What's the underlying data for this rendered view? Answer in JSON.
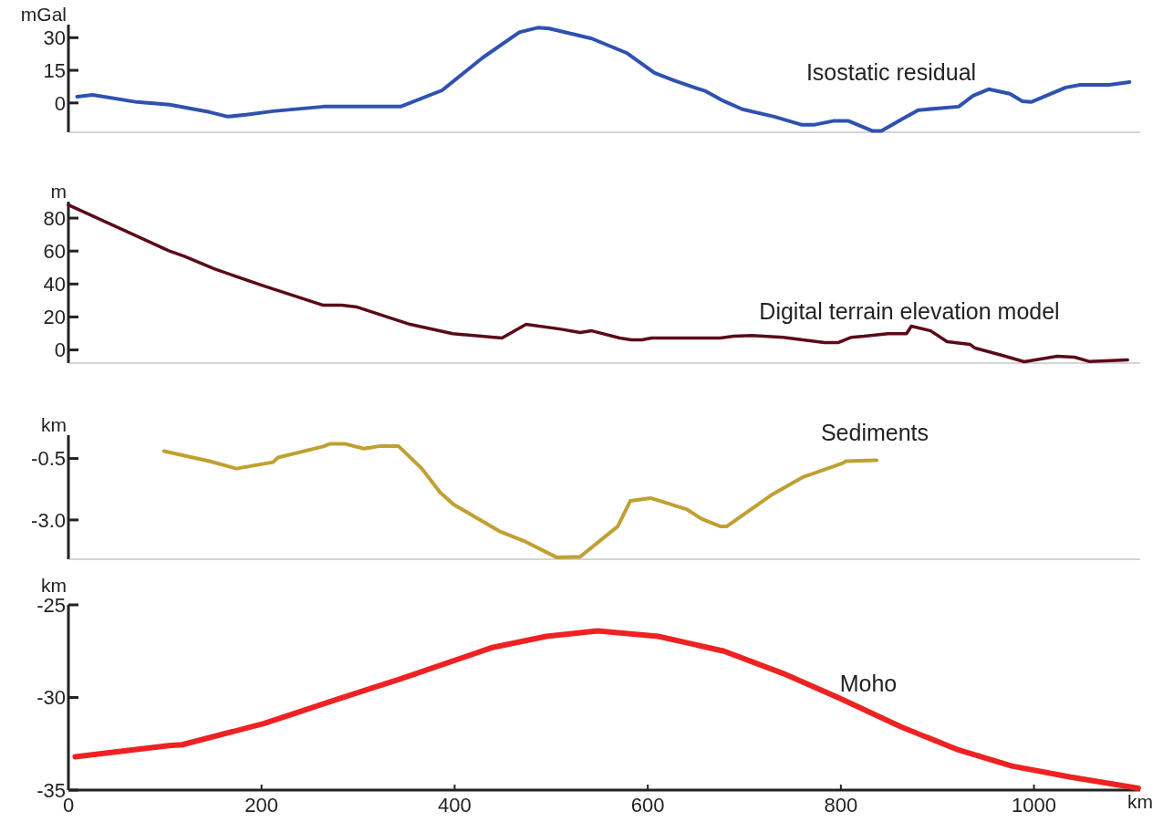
{
  "chart_data": [
    {
      "type": "line",
      "ylabel": "mGal",
      "xlim": [
        0,
        1110
      ],
      "ylim": [
        -13.5,
        36
      ],
      "yticks": [
        0,
        15,
        30
      ],
      "tick_labels": "y",
      "line_style": "solid",
      "x": [
        9,
        25,
        71,
        105,
        146,
        165,
        184,
        212,
        264,
        307,
        344,
        387,
        429,
        467,
        486,
        498,
        542,
        578,
        607,
        627,
        651,
        660,
        679,
        698,
        731,
        759,
        773,
        792,
        808,
        833,
        842,
        863,
        880,
        922,
        937,
        953,
        975,
        988,
        997,
        1033,
        1048,
        1078,
        1099
      ],
      "series": [
        {
          "name": "Isostatic residual",
          "color": "#2f52b0",
          "values": [
            2.9,
            3.7,
            0.4,
            -0.8,
            -4.2,
            -6.3,
            -5.4,
            -3.8,
            -1.7,
            -1.7,
            -1.7,
            5.8,
            20.8,
            32.5,
            34.6,
            34.2,
            29.6,
            23,
            13.8,
            10.4,
            6.7,
            5.4,
            0.8,
            -2.9,
            -6.3,
            -10,
            -10,
            -8.3,
            -8.3,
            -12.9,
            -12.9,
            -7.5,
            -3.3,
            -1.7,
            3.3,
            6.3,
            4.2,
            0.8,
            0.4,
            7.1,
            8.3,
            8.3,
            9.6
          ]
        }
      ]
    },
    {
      "type": "line",
      "ylabel": "m",
      "xlim": [
        0,
        1110
      ],
      "ylim": [
        -8,
        90
      ],
      "yticks": [
        0,
        20,
        40,
        60,
        80
      ],
      "tick_labels": "y",
      "line_style": "solid",
      "x": [
        0,
        104,
        120,
        151,
        203,
        264,
        283,
        299,
        354,
        398,
        449,
        474,
        509,
        530,
        542,
        571,
        583,
        594,
        604,
        675,
        689,
        708,
        740,
        783,
        797,
        811,
        824,
        849,
        868,
        873,
        893,
        910,
        934,
        939,
        967,
        990,
        1024,
        1042,
        1057,
        1097
      ],
      "series": [
        {
          "name": "Digital terrain elevation model",
          "color": "#5a0a18",
          "values": [
            88,
            60.2,
            56.9,
            49.2,
            38.7,
            27.1,
            27.1,
            26,
            15.5,
            9.9,
            7.2,
            15.5,
            12.7,
            10.5,
            11.6,
            7.2,
            6.1,
            6.1,
            7.2,
            7.2,
            8.3,
            8.8,
            7.7,
            4.4,
            4.4,
            7.7,
            8.3,
            9.9,
            9.9,
            14.4,
            11.6,
            5,
            3.3,
            1.1,
            -3.3,
            -7.2,
            -3.9,
            -4.4,
            -7,
            -6
          ]
        }
      ]
    },
    {
      "type": "line",
      "ylabel": "km",
      "xlim": [
        0,
        1110
      ],
      "ylim": [
        -4.6,
        0.45
      ],
      "yticks": [
        -0.5,
        {
          "value": -3,
          "label": "-3.0"
        }
      ],
      "tick_labels": "y",
      "line_style": "solid",
      "x": [
        99,
        146,
        174,
        212,
        217,
        264,
        271,
        286,
        306,
        323,
        342,
        366,
        385,
        399,
        446,
        472,
        506,
        530,
        569,
        582,
        603,
        640,
        656,
        675,
        682,
        729,
        761,
        802,
        805,
        837
      ],
      "series": [
        {
          "name": "Sediments",
          "color": "#bfa032",
          "values": [
            -0.2,
            -0.61,
            -0.91,
            -0.65,
            -0.46,
            -0.01,
            0.1,
            0.1,
            -0.1,
            0.01,
            0,
            -0.91,
            -1.88,
            -2.37,
            -3.45,
            -3.86,
            -4.53,
            -4.5,
            -3.26,
            -2.22,
            -2.11,
            -2.56,
            -2.96,
            -3.26,
            -3.26,
            -1.96,
            -1.25,
            -0.69,
            -0.61,
            -0.57
          ]
        }
      ]
    },
    {
      "type": "line",
      "ylabel": "km",
      "xlabel": "km",
      "xlim": [
        0,
        1110
      ],
      "xticks": [
        0,
        200,
        400,
        600,
        800,
        1000
      ],
      "ylim": [
        -35,
        -25
      ],
      "yticks": [
        -25,
        -30,
        -35
      ],
      "line_style": "solid",
      "x": [
        7,
        104,
        118,
        203,
        278,
        344,
        439,
        495,
        548,
        611,
        679,
        740,
        797,
        863,
        920,
        977,
        1038,
        1108
      ],
      "series": [
        {
          "name": "Moho",
          "color": "#ee2222",
          "values": [
            -33.2,
            -32.6,
            -32.55,
            -31.4,
            -30.1,
            -29,
            -27.3,
            -26.7,
            -26.4,
            -26.7,
            -27.5,
            -28.7,
            -30,
            -31.6,
            -32.8,
            -33.7,
            -34.3,
            -34.9
          ]
        }
      ]
    }
  ]
}
